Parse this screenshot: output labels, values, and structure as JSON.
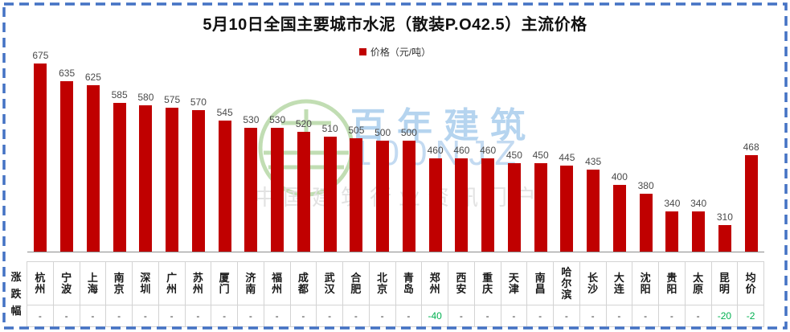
{
  "title": "5月10日全国主要城市水泥（散装P.O42.5）主流价格",
  "legend": {
    "label": "价格（元/吨）",
    "swatch_color": "#C00000"
  },
  "table": {
    "row_label": "涨跌幅"
  },
  "watermark": {
    "brand": "百年建筑",
    "code": "100NJZ",
    "tagline": "中国建筑行业资讯门户"
  },
  "colors": {
    "bar": "#C00000",
    "negative_change": "#00B050",
    "frame_border": "#4472C4",
    "table_border": "#d3d3d3",
    "watermark_blue": "#a9cded",
    "watermark_gray": "#e2e2e2",
    "logo_green": "#b7d8a6"
  },
  "chart_data": {
    "type": "bar",
    "title": "5月10日全国主要城市水泥（散装P.O42.5）主流价格",
    "legend": [
      "价格（元/吨）"
    ],
    "legend_position": "top",
    "categories": [
      "杭州",
      "宁波",
      "上海",
      "南京",
      "深圳",
      "广州",
      "苏州",
      "厦门",
      "济南",
      "福州",
      "成都",
      "武汉",
      "合肥",
      "北京",
      "青岛",
      "郑州",
      "西安",
      "重庆",
      "天津",
      "南昌",
      "哈尔滨",
      "长沙",
      "大连",
      "沈阳",
      "贵阳",
      "太原",
      "昆明",
      "均价"
    ],
    "values": [
      675,
      635,
      625,
      585,
      580,
      575,
      570,
      545,
      530,
      530,
      520,
      510,
      505,
      500,
      500,
      460,
      460,
      460,
      450,
      450,
      445,
      435,
      400,
      380,
      340,
      340,
      310,
      468
    ],
    "changes": [
      "-",
      "-",
      "-",
      "-",
      "-",
      "-",
      "-",
      "-",
      "-",
      "-",
      "-",
      "-",
      "-",
      "-",
      "-",
      "-40",
      "-",
      "-",
      "-",
      "-",
      "-",
      "-",
      "-",
      "-",
      "-",
      "-",
      "-20",
      "-2"
    ],
    "xlabel": "",
    "ylabel": "价格（元/吨）",
    "ylim": [
      250,
      700
    ],
    "grid": false,
    "data_labels": true,
    "bar_color": "#C00000"
  }
}
